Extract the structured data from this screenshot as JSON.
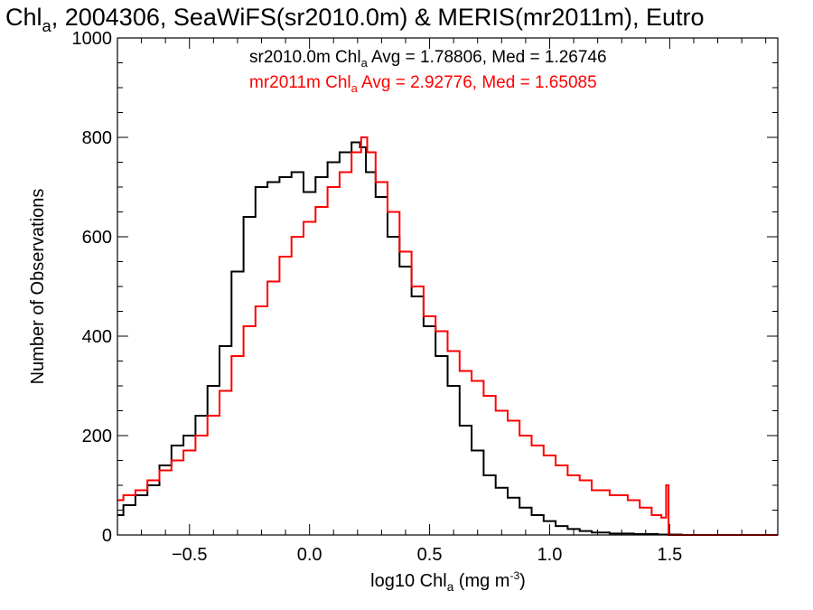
{
  "chart_data": {
    "type": "line",
    "drawstyle": "steps",
    "title": {
      "pre": "Chl",
      "sub": "a",
      "post": ", 2004306, SeaWiFS(sr2010.0m) & MERIS(mr2011m), Eutro"
    },
    "xlabel": {
      "pre": "log10 Chl",
      "sub": "a",
      "mid": " (mg m",
      "sup": "-3",
      "post": ")"
    },
    "ylabel": "Number of Observations",
    "xlim": [
      -0.8,
      1.95
    ],
    "ylim": [
      0,
      1000
    ],
    "xticks": [
      -0.5,
      0.0,
      0.5,
      1.0,
      1.5
    ],
    "xtick_labels": [
      "-0.5",
      "0.0",
      "0.5",
      "1.0",
      "1.5"
    ],
    "yticks": [
      0,
      200,
      400,
      600,
      800,
      1000
    ],
    "ytick_labels": [
      "0",
      "200",
      "400",
      "600",
      "800",
      "1000"
    ],
    "legend_placement": "top-center",
    "series": [
      {
        "name": "sr2010.0m",
        "color": "#000000",
        "label": {
          "pre": "sr2010.0m Chl",
          "sub": "a",
          "post": " Avg = 1.78806, Med = 1.26746"
        },
        "x": [
          -0.8,
          -0.75,
          -0.7,
          -0.65,
          -0.6,
          -0.55,
          -0.5,
          -0.45,
          -0.4,
          -0.35,
          -0.3,
          -0.25,
          -0.2,
          -0.15,
          -0.1,
          -0.05,
          0.0,
          0.05,
          0.1,
          0.15,
          0.2,
          0.22,
          0.25,
          0.3,
          0.35,
          0.4,
          0.45,
          0.5,
          0.55,
          0.6,
          0.65,
          0.7,
          0.75,
          0.8,
          0.85,
          0.9,
          0.95,
          1.0,
          1.05,
          1.1,
          1.15,
          1.2,
          1.3,
          1.4,
          1.5,
          1.6,
          1.7,
          1.8,
          1.95
        ],
        "y": [
          40,
          60,
          80,
          100,
          140,
          180,
          200,
          240,
          300,
          380,
          530,
          640,
          700,
          710,
          720,
          730,
          690,
          720,
          750,
          770,
          790,
          780,
          730,
          680,
          600,
          540,
          480,
          420,
          360,
          300,
          220,
          170,
          120,
          95,
          75,
          55,
          40,
          28,
          18,
          12,
          8,
          5,
          3,
          2,
          1,
          0,
          0,
          0,
          0
        ]
      },
      {
        "name": "mr2011m",
        "color": "#ff0000",
        "label": {
          "pre": "mr2011m Chl",
          "sub": "a",
          "post": " Avg = 2.92776, Med = 1.65085"
        },
        "x": [
          -0.8,
          -0.75,
          -0.7,
          -0.65,
          -0.6,
          -0.55,
          -0.5,
          -0.45,
          -0.4,
          -0.35,
          -0.3,
          -0.25,
          -0.2,
          -0.15,
          -0.1,
          -0.05,
          0.0,
          0.05,
          0.1,
          0.15,
          0.2,
          0.23,
          0.25,
          0.3,
          0.35,
          0.4,
          0.45,
          0.5,
          0.55,
          0.6,
          0.65,
          0.7,
          0.75,
          0.8,
          0.85,
          0.9,
          0.95,
          1.0,
          1.05,
          1.1,
          1.15,
          1.2,
          1.3,
          1.35,
          1.4,
          1.45,
          1.48,
          1.49,
          1.5,
          1.6,
          1.7,
          1.8,
          1.95
        ],
        "y": [
          70,
          80,
          90,
          110,
          130,
          150,
          170,
          200,
          240,
          290,
          360,
          420,
          460,
          510,
          560,
          600,
          630,
          660,
          700,
          730,
          770,
          800,
          770,
          710,
          650,
          570,
          500,
          440,
          410,
          370,
          330,
          310,
          280,
          250,
          230,
          200,
          180,
          160,
          140,
          120,
          110,
          90,
          80,
          70,
          55,
          40,
          35,
          100,
          0,
          0,
          0,
          0,
          0
        ]
      }
    ]
  }
}
